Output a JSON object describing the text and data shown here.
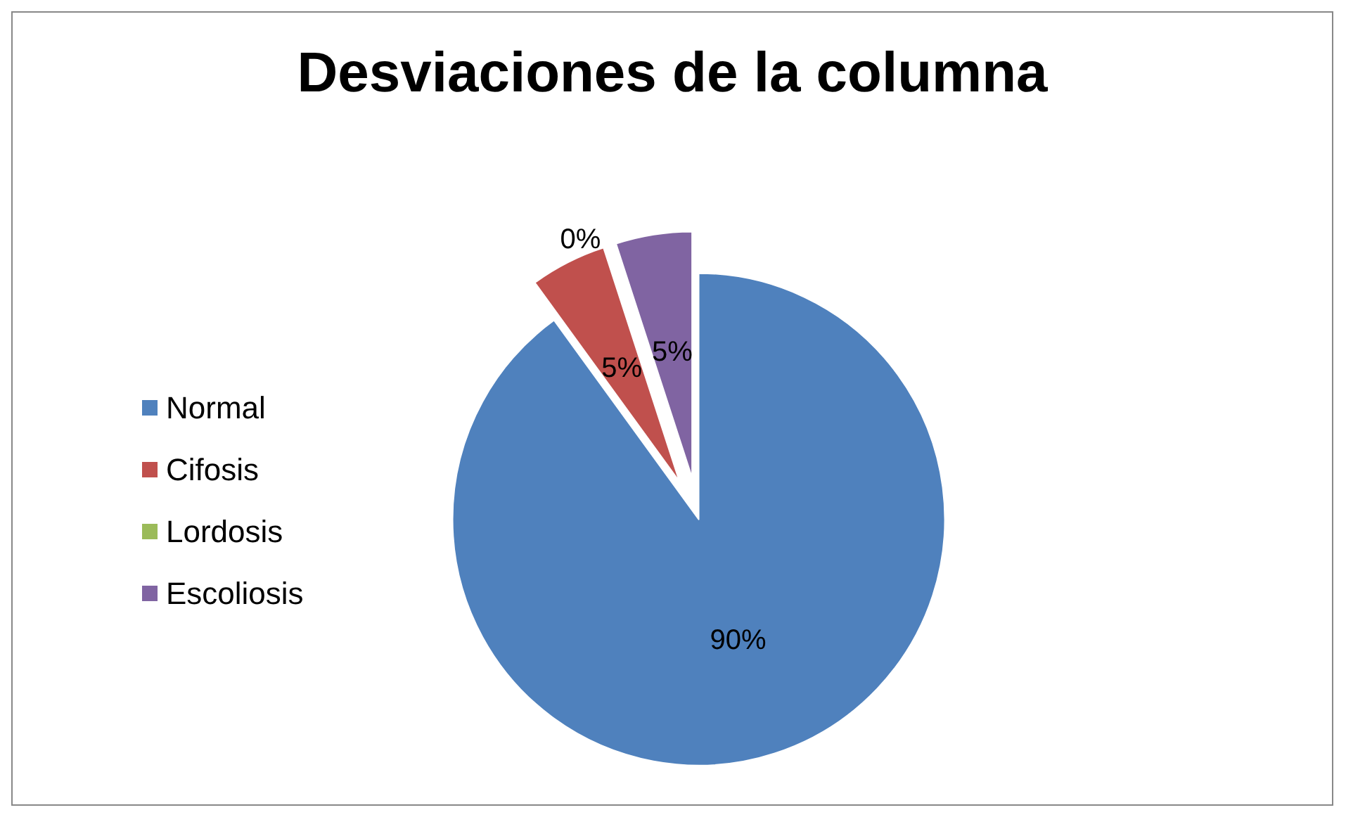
{
  "chart_data": {
    "type": "pie",
    "title": "Desviaciones de la columna",
    "categories": [
      "Normal",
      "Cifosis",
      "Lordosis",
      "Escoliosis"
    ],
    "values": [
      90,
      5,
      0,
      5
    ],
    "colors": [
      "#4f81bd",
      "#c0504d",
      "#9bbb59",
      "#8064a2"
    ],
    "value_labels": [
      "90%",
      "5%",
      "0%",
      "5%"
    ],
    "legend": "left"
  }
}
